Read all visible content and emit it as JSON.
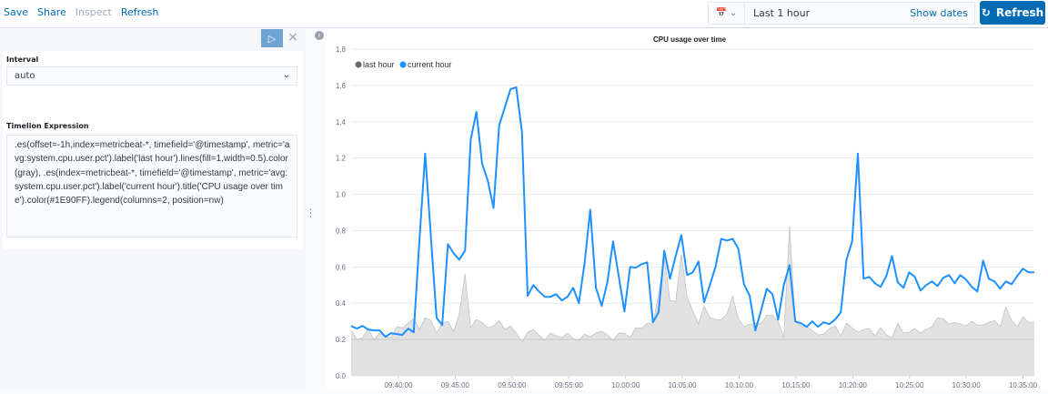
{
  "top_menu": {
    "save": "Save",
    "share": "Share",
    "inspect": "Inspect",
    "refresh": "Refresh"
  },
  "time_picker": {
    "icon": "calendar-icon",
    "value": "Last 1 hour",
    "show_dates": "Show dates",
    "refresh_label": "Refresh",
    "refresh_icon": "refresh-icon"
  },
  "editor": {
    "run_icon": "play-icon",
    "close_icon": "close-icon",
    "interval_label": "Interval",
    "interval_value": "auto",
    "expression_label": "Timelion Expression",
    "expression": ".es(offset=-1h,index=metricbeat-*, timefield='@timestamp', metric='avg:system.cpu.user.pct').label('last hour').lines(fill=1,width=0.5).color(gray), .es(index=metricbeat-*, timefield='@timestamp', metric='avg:system.cpu.user.pct').label('current hour').title('CPU usage over time').color(#1E90FF).legend(columns=2, position=nw)"
  },
  "chart_data": {
    "type": "line",
    "title": "CPU usage over time",
    "xlim": [
      "09:35:50",
      "10:36:00"
    ],
    "ylim": [
      0,
      1.8
    ],
    "yticks": [
      "0.0",
      "0.2",
      "0.4",
      "0.6",
      "0.8",
      "1.0",
      "1.2",
      "1.4",
      "1.6",
      "1.8"
    ],
    "xticks": [
      "09:40:00",
      "09:45:00",
      "09:50:00",
      "09:55:00",
      "10:00:00",
      "10:05:00",
      "10:10:00",
      "10:15:00",
      "10:20:00",
      "10:25:00",
      "10:30:00",
      "10:35:00"
    ],
    "grid": true,
    "legend_position": "top-left",
    "series": [
      {
        "name": "last hour",
        "color": "#808080",
        "fill": true,
        "values": [
          0.25,
          0.2,
          0.21,
          0.26,
          0.2,
          0.235,
          0.215,
          0.21,
          0.27,
          0.265,
          0.29,
          0.315,
          0.255,
          0.32,
          0.305,
          0.235,
          0.29,
          0.3,
          0.245,
          0.34,
          0.56,
          0.265,
          0.31,
          0.295,
          0.265,
          0.275,
          0.305,
          0.255,
          0.275,
          0.235,
          0.185,
          0.24,
          0.255,
          0.225,
          0.195,
          0.235,
          0.22,
          0.21,
          0.235,
          0.205,
          0.195,
          0.23,
          0.215,
          0.235,
          0.245,
          0.225,
          0.195,
          0.235,
          0.235,
          0.21,
          0.265,
          0.26,
          0.29,
          0.285,
          0.45,
          0.65,
          0.415,
          0.41,
          0.67,
          0.435,
          0.36,
          0.285,
          0.385,
          0.32,
          0.31,
          0.31,
          0.34,
          0.44,
          0.315,
          0.27,
          0.285,
          0.29,
          0.285,
          0.335,
          0.335,
          0.3,
          0.21,
          0.825,
          0.3,
          0.275,
          0.27,
          0.25,
          0.225,
          0.23,
          0.26,
          0.275,
          0.22,
          0.29,
          0.265,
          0.24,
          0.255,
          0.26,
          0.22,
          0.265,
          0.225,
          0.21,
          0.29,
          0.235,
          0.24,
          0.26,
          0.235,
          0.255,
          0.27,
          0.32,
          0.315,
          0.285,
          0.295,
          0.285,
          0.275,
          0.3,
          0.28,
          0.28,
          0.295,
          0.305,
          0.27,
          0.38,
          0.305,
          0.27,
          0.325,
          0.295,
          0.295
        ]
      },
      {
        "name": "current hour",
        "color": "#1E90FF",
        "fill": false,
        "values": [
          0.275,
          0.26,
          0.275,
          0.255,
          0.25,
          0.25,
          0.215,
          0.235,
          0.23,
          0.225,
          0.26,
          0.24,
          0.75,
          1.225,
          0.77,
          0.32,
          0.28,
          0.725,
          0.675,
          0.64,
          0.69,
          1.3,
          1.455,
          1.17,
          1.075,
          0.925,
          1.38,
          1.48,
          1.58,
          1.59,
          1.34,
          0.44,
          0.5,
          0.465,
          0.435,
          0.435,
          0.45,
          0.415,
          0.435,
          0.485,
          0.4,
          0.62,
          0.915,
          0.485,
          0.385,
          0.515,
          0.74,
          0.55,
          0.355,
          0.6,
          0.595,
          0.615,
          0.625,
          0.295,
          0.35,
          0.69,
          0.535,
          0.66,
          0.775,
          0.555,
          0.57,
          0.63,
          0.405,
          0.5,
          0.6,
          0.755,
          0.745,
          0.755,
          0.7,
          0.505,
          0.44,
          0.25,
          0.36,
          0.48,
          0.45,
          0.31,
          0.5,
          0.61,
          0.3,
          0.29,
          0.27,
          0.3,
          0.27,
          0.295,
          0.285,
          0.31,
          0.35,
          0.64,
          0.74,
          1.225,
          0.535,
          0.545,
          0.51,
          0.49,
          0.55,
          0.66,
          0.515,
          0.485,
          0.57,
          0.545,
          0.47,
          0.5,
          0.52,
          0.495,
          0.54,
          0.555,
          0.51,
          0.555,
          0.53,
          0.49,
          0.465,
          0.635,
          0.535,
          0.52,
          0.48,
          0.52,
          0.505,
          0.55,
          0.59,
          0.57,
          0.57
        ]
      }
    ]
  }
}
